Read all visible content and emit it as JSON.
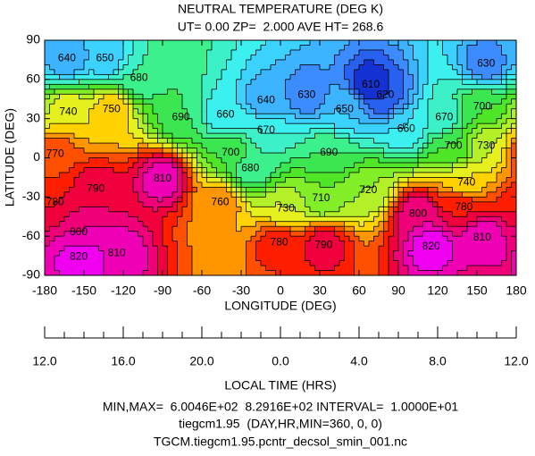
{
  "chart_data": {
    "type": "contour",
    "title": "NEUTRAL TEMPERATURE (DEG K)",
    "subtitle": "UT= 0.00 ZP=  2.000 AVE HT= 268.6",
    "xlabel": "LONGITUDE (DEG)",
    "ylabel": "LATITUDE (DEG)",
    "x2label": "LOCAL TIME (HRS)",
    "xlim": [
      -180,
      180
    ],
    "ylim": [
      -90,
      90
    ],
    "xticks": [
      -180,
      -150,
      -120,
      -90,
      -60,
      -30,
      0,
      30,
      60,
      90,
      120,
      150,
      180
    ],
    "yticks": [
      -90,
      -60,
      -30,
      0,
      30,
      60,
      90
    ],
    "x2ticks": [
      {
        "value": -180,
        "label": "12.0"
      },
      {
        "value": -120,
        "label": "16.0"
      },
      {
        "value": -60,
        "label": "20.0"
      },
      {
        "value": 0,
        "label": "0.0"
      },
      {
        "value": 60,
        "label": "4.0"
      },
      {
        "value": 120,
        "label": "8.0"
      },
      {
        "value": 180,
        "label": "12.0"
      }
    ],
    "levels": [
      600,
      610,
      620,
      630,
      640,
      650,
      660,
      670,
      680,
      690,
      700,
      710,
      720,
      730,
      740,
      750,
      760,
      770,
      780,
      790,
      800,
      810,
      820,
      830
    ],
    "colors": [
      "#0a14b4",
      "#1432d2",
      "#2860f0",
      "#3c8cff",
      "#3cb4ff",
      "#3cd2ff",
      "#3cf0f0",
      "#3cf0c8",
      "#3cf08c",
      "#3ce650",
      "#50e628",
      "#82ee28",
      "#b4f028",
      "#e6f01e",
      "#ffd200",
      "#ff9600",
      "#ff5000",
      "#ff1e00",
      "#f0003c",
      "#f00078",
      "#f000b4",
      "#f000f0",
      "#f000f0"
    ],
    "contour_labels": [
      {
        "lon": -163,
        "lat": 76,
        "value": 640
      },
      {
        "lon": -134,
        "lat": 76,
        "value": 650
      },
      {
        "lon": 69,
        "lat": 56,
        "value": 610
      },
      {
        "lon": 157,
        "lat": 72,
        "value": 630
      },
      {
        "lon": -108,
        "lat": 61,
        "value": 680
      },
      {
        "lon": -11,
        "lat": 44,
        "value": 640
      },
      {
        "lon": 20,
        "lat": 48,
        "value": 630
      },
      {
        "lon": 80,
        "lat": 48,
        "value": 620
      },
      {
        "lon": 49,
        "lat": 37,
        "value": 650
      },
      {
        "lon": -162,
        "lat": 35,
        "value": 740
      },
      {
        "lon": -129,
        "lat": 37,
        "value": 750
      },
      {
        "lon": -76,
        "lat": 31,
        "value": 690
      },
      {
        "lon": -42,
        "lat": 33,
        "value": 660
      },
      {
        "lon": -11,
        "lat": 21,
        "value": 670
      },
      {
        "lon": 96,
        "lat": 22,
        "value": 660
      },
      {
        "lon": 125,
        "lat": 31,
        "value": 670
      },
      {
        "lon": 154,
        "lat": 39,
        "value": 700
      },
      {
        "lon": 157,
        "lat": 9,
        "value": 730
      },
      {
        "lon": -172,
        "lat": 3,
        "value": 770
      },
      {
        "lon": -38,
        "lat": 4,
        "value": 700
      },
      {
        "lon": 37,
        "lat": 4,
        "value": 690
      },
      {
        "lon": 132,
        "lat": 9,
        "value": 700
      },
      {
        "lon": -23,
        "lat": -8,
        "value": 680
      },
      {
        "lon": -90,
        "lat": -16,
        "value": 810
      },
      {
        "lon": -141,
        "lat": -24,
        "value": 790
      },
      {
        "lon": 67,
        "lat": -25,
        "value": 720
      },
      {
        "lon": 31,
        "lat": -31,
        "value": 710
      },
      {
        "lon": 142,
        "lat": -19,
        "value": 740
      },
      {
        "lon": -172,
        "lat": -34,
        "value": 780
      },
      {
        "lon": -46,
        "lat": -34,
        "value": 760
      },
      {
        "lon": 4,
        "lat": -39,
        "value": 730
      },
      {
        "lon": 105,
        "lat": -43,
        "value": 800
      },
      {
        "lon": 140,
        "lat": -38,
        "value": 780
      },
      {
        "lon": 154,
        "lat": -61,
        "value": 810
      },
      {
        "lon": -154,
        "lat": -57,
        "value": 800
      },
      {
        "lon": -1,
        "lat": -65,
        "value": 780
      },
      {
        "lon": 33,
        "lat": -67,
        "value": 790
      },
      {
        "lon": 115,
        "lat": -68,
        "value": 820
      },
      {
        "lon": -125,
        "lat": -73,
        "value": 810
      },
      {
        "lon": -154,
        "lat": -76,
        "value": 820
      }
    ],
    "footer": [
      "MIN,MAX=  6.0046E+02  8.2916E+02 INTERVAL=  1.0000E+01",
      "tiegcm1.95  (DAY,HR,MIN=360, 0, 0)",
      "TGCM.tiegcm1.95.pcntr_decsol_smin_001.nc"
    ]
  }
}
